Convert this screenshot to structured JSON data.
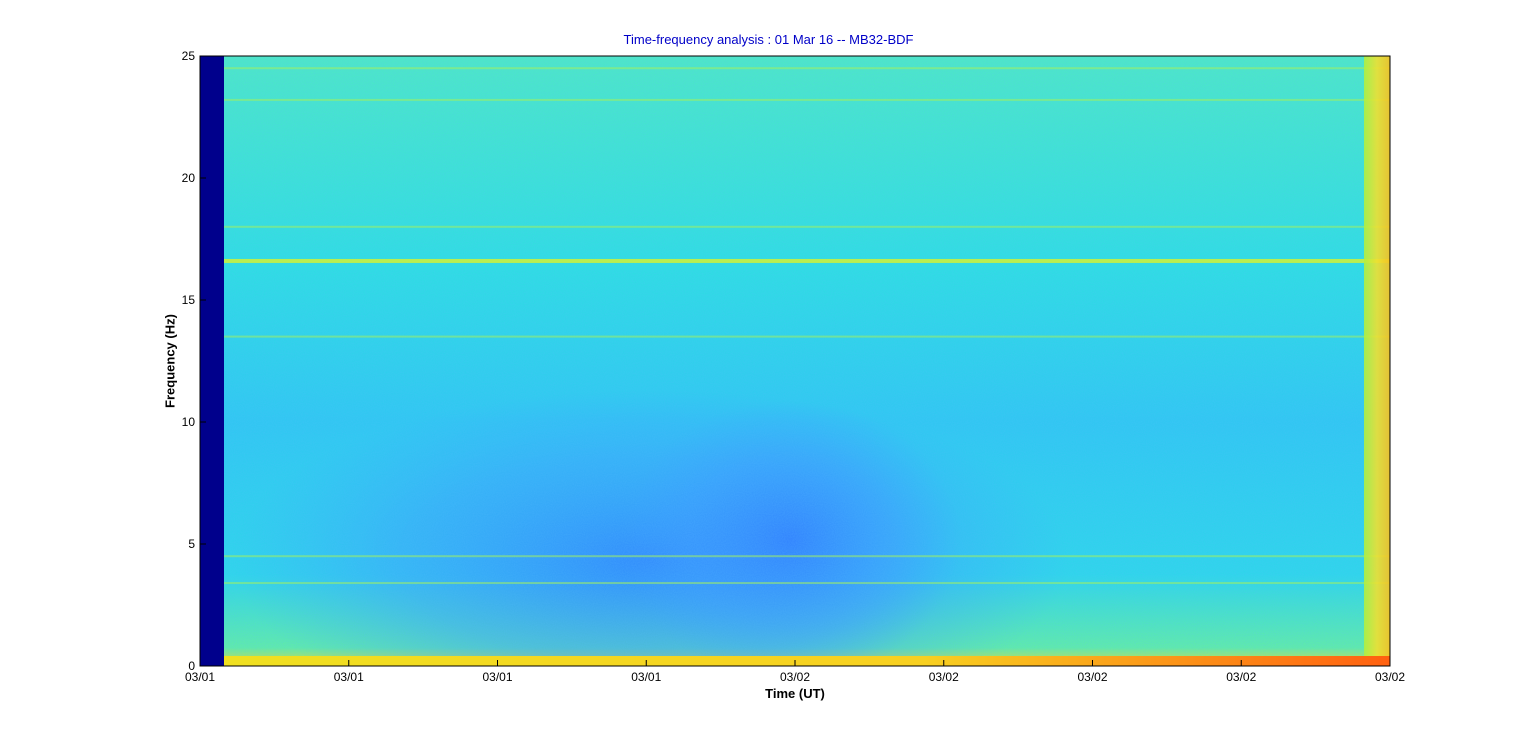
{
  "chart_data": {
    "type": "heatmap",
    "title": "Time-frequency analysis : 01 Mar 16 -- MB32-BDF",
    "xlabel": "Time (UT)",
    "ylabel": "Frequency (Hz)",
    "ylim": [
      0,
      25
    ],
    "y_ticks": [
      "0",
      "5",
      "10",
      "15",
      "20",
      "25"
    ],
    "x_ticks": [
      "03/01",
      "03/01",
      "03/01",
      "03/01",
      "03/02",
      "03/02",
      "03/02",
      "03/02",
      "03/02"
    ],
    "colormap": "jet",
    "colors": {
      "no_data": "#00008c",
      "background": "#20d8e8",
      "quiet": "#3aa0ff",
      "band": "#b8f040",
      "strong": "#ff3000"
    },
    "features": {
      "horizontal_bands_hz": [
        24.5,
        23.2,
        16.6,
        13.5,
        18.0,
        4.5,
        3.4
      ],
      "quiet_region_hz": [
        0.5,
        10
      ]
    }
  }
}
